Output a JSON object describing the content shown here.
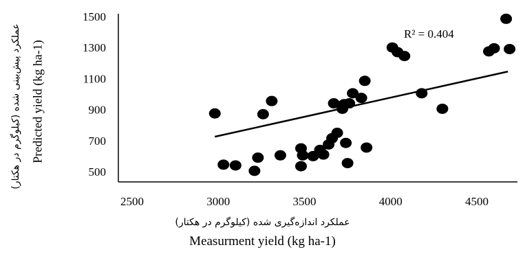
{
  "chart_data": {
    "type": "scatter",
    "xlabel_fa": "عملکرد اندازه‌گیری شده (کیلوگرم در هکتار)",
    "xlabel_en": "Measurment yield (kg ha-1)",
    "ylabel_fa": "عملکرد پیش‌بینی شده (کیلوگرم در هکتار)",
    "ylabel_en": "Predicted yield (kg ha-1)",
    "xlim": [
      2500,
      4700
    ],
    "ylim": [
      460,
      1550
    ],
    "x_ticks": [
      2500,
      3000,
      3500,
      4000,
      4500
    ],
    "y_ticks": [
      500,
      700,
      900,
      1100,
      1300,
      1500
    ],
    "annotation": "R² = 0.404",
    "trendline": {
      "x": [
        2980,
        4680
      ],
      "y": [
        725,
        1145
      ]
    },
    "points": [
      {
        "x": 2980,
        "y": 875
      },
      {
        "x": 3030,
        "y": 545
      },
      {
        "x": 3100,
        "y": 540
      },
      {
        "x": 3210,
        "y": 505
      },
      {
        "x": 3230,
        "y": 590
      },
      {
        "x": 3260,
        "y": 870
      },
      {
        "x": 3310,
        "y": 955
      },
      {
        "x": 3360,
        "y": 605
      },
      {
        "x": 3480,
        "y": 650
      },
      {
        "x": 3480,
        "y": 535
      },
      {
        "x": 3490,
        "y": 605
      },
      {
        "x": 3550,
        "y": 600
      },
      {
        "x": 3590,
        "y": 640
      },
      {
        "x": 3610,
        "y": 610
      },
      {
        "x": 3640,
        "y": 675
      },
      {
        "x": 3660,
        "y": 715
      },
      {
        "x": 3670,
        "y": 940
      },
      {
        "x": 3690,
        "y": 750
      },
      {
        "x": 3720,
        "y": 905
      },
      {
        "x": 3730,
        "y": 935
      },
      {
        "x": 3740,
        "y": 685
      },
      {
        "x": 3750,
        "y": 555
      },
      {
        "x": 3760,
        "y": 940
      },
      {
        "x": 3780,
        "y": 1005
      },
      {
        "x": 3830,
        "y": 975
      },
      {
        "x": 3850,
        "y": 1085
      },
      {
        "x": 3860,
        "y": 655
      },
      {
        "x": 4010,
        "y": 1300
      },
      {
        "x": 4040,
        "y": 1270
      },
      {
        "x": 4080,
        "y": 1245
      },
      {
        "x": 4180,
        "y": 1005
      },
      {
        "x": 4300,
        "y": 905
      },
      {
        "x": 4570,
        "y": 1275
      },
      {
        "x": 4600,
        "y": 1295
      },
      {
        "x": 4670,
        "y": 1485
      },
      {
        "x": 4690,
        "y": 1290
      }
    ]
  }
}
